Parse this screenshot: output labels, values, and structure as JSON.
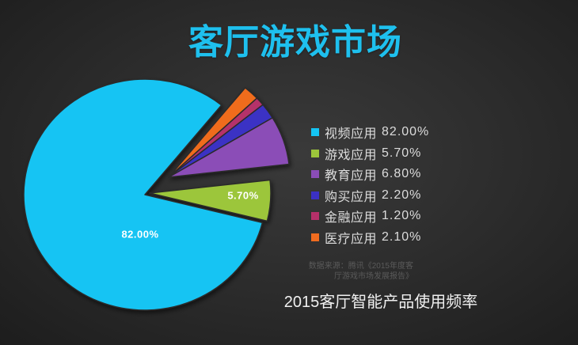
{
  "title": "客厅游戏市场",
  "colors": {
    "background": "#2c2c2c",
    "title": "#1ec0ee",
    "legend_text": "#dcdcdc",
    "source_text": "#5a5a5a",
    "caption_text": "#f0f0f0"
  },
  "chart_data": {
    "type": "pie",
    "title": "2015客厅智能产品使用频率",
    "categories": [
      "视频应用",
      "游戏应用",
      "教育应用",
      "购买应用",
      "金融应用",
      "医疗应用"
    ],
    "values": [
      82.0,
      5.7,
      6.8,
      2.2,
      1.2,
      2.1
    ],
    "value_labels": [
      "82.00%",
      "5.70%",
      "6.80%",
      "2.20%",
      "1.20%",
      "2.10%"
    ],
    "colors": [
      "#14c4f3",
      "#9cc63b",
      "#8b4db7",
      "#3b30c4",
      "#b5306a",
      "#f06c1f"
    ],
    "exploded": [
      false,
      true,
      true,
      true,
      true,
      true
    ],
    "legend_position": "right",
    "source": "数据来源：腾讯《2015年度客厅游戏市场发展报告》"
  }
}
